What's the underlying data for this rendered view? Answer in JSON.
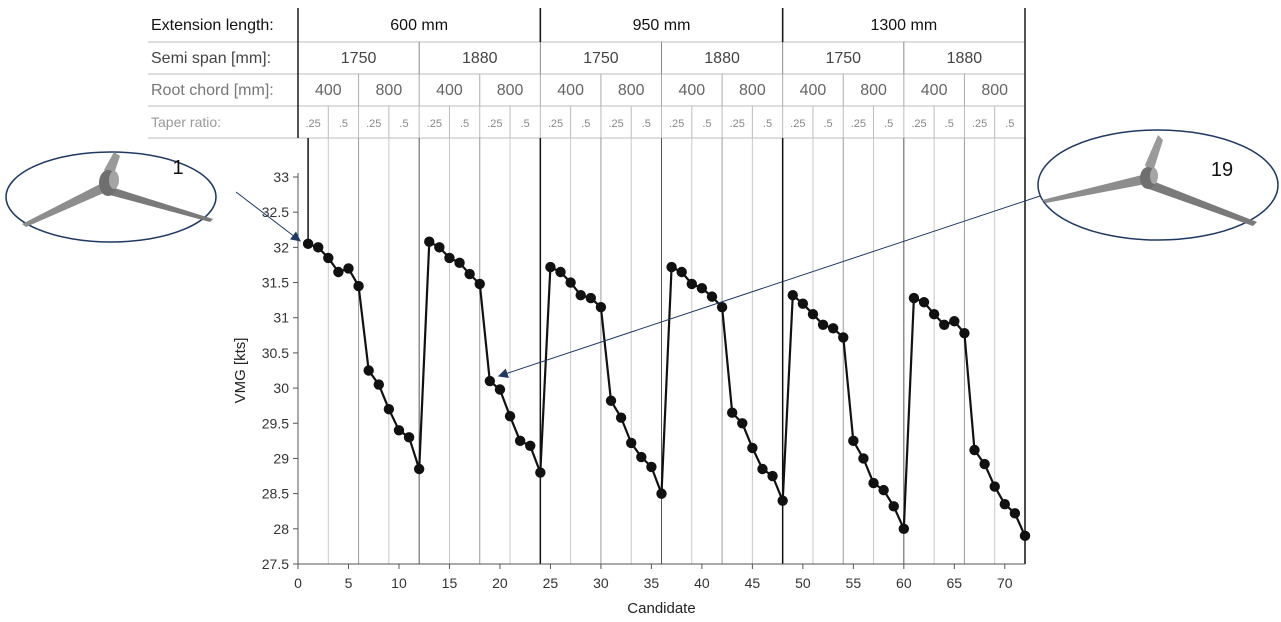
{
  "chart_data": {
    "type": "line",
    "xlabel": "Candidate",
    "ylabel": "VMG [kts]",
    "xlim": [
      0,
      72
    ],
    "ylim": [
      27.5,
      33
    ],
    "x_ticks": [
      0,
      5,
      10,
      15,
      20,
      25,
      30,
      35,
      40,
      45,
      50,
      55,
      60,
      65,
      70
    ],
    "y_ticks": [
      27.5,
      28,
      28.5,
      29,
      29.5,
      30,
      30.5,
      31,
      31.5,
      32,
      32.5,
      33
    ],
    "x_tick_labels": [
      "0",
      "5",
      "10",
      "15",
      "20",
      "25",
      "30",
      "35",
      "40",
      "45",
      "50",
      "55",
      "60",
      "65",
      "70"
    ],
    "y_tick_labels": [
      "27.5",
      "28",
      "28.5",
      "29",
      "29.5",
      "30",
      "30.5",
      "31",
      "31.5",
      "32",
      "32.5",
      "33"
    ],
    "series": [
      {
        "x": [
          1,
          2,
          3,
          4,
          5,
          6,
          7,
          8,
          9,
          10,
          11,
          12,
          13,
          14,
          15,
          16,
          17,
          18,
          19,
          20,
          21,
          22,
          23,
          24,
          25,
          26,
          27,
          28,
          29,
          30,
          31,
          32,
          33,
          34,
          35,
          36,
          37,
          38,
          39,
          40,
          41,
          42,
          43,
          44,
          45,
          46,
          47,
          48,
          49,
          50,
          51,
          52,
          53,
          54,
          55,
          56,
          57,
          58,
          59,
          60,
          61,
          62,
          63,
          64,
          65,
          66,
          67,
          68,
          69,
          70,
          71,
          72
        ],
        "values": [
          32.05,
          32.0,
          31.85,
          31.65,
          31.7,
          31.45,
          30.25,
          30.05,
          29.7,
          29.4,
          29.3,
          28.85,
          32.08,
          32.0,
          31.85,
          31.78,
          31.62,
          31.48,
          30.1,
          29.98,
          29.6,
          29.25,
          29.18,
          28.8,
          31.72,
          31.65,
          31.5,
          31.32,
          31.28,
          31.15,
          29.82,
          29.58,
          29.22,
          29.02,
          28.88,
          28.5,
          31.72,
          31.65,
          31.48,
          31.42,
          31.3,
          31.15,
          29.65,
          29.5,
          29.15,
          28.85,
          28.75,
          28.4,
          31.32,
          31.2,
          31.05,
          30.9,
          30.85,
          30.72,
          29.25,
          29.0,
          28.65,
          28.55,
          28.32,
          28.0,
          31.28,
          31.22,
          31.05,
          30.9,
          30.95,
          30.78,
          29.12,
          28.92,
          28.6,
          28.35,
          28.22,
          27.9
        ]
      }
    ],
    "header": {
      "rows": [
        {
          "label": "Extension length:",
          "groups": [
            "600 mm",
            "950 mm",
            "1300 mm"
          ]
        },
        {
          "label": "Semi span [mm]:",
          "groups": [
            "1750",
            "1880",
            "1750",
            "1880",
            "1750",
            "1880"
          ]
        },
        {
          "label": "Root chord [mm]:",
          "groups": [
            "400",
            "800",
            "400",
            "800",
            "400",
            "800",
            "400",
            "800",
            "400",
            "800",
            "400",
            "800"
          ]
        },
        {
          "label": "Taper ratio:",
          "groups": [
            ".25",
            ".5",
            ".25",
            ".5",
            ".25",
            ".5",
            ".25",
            ".5",
            ".25",
            ".5",
            ".25",
            ".5",
            ".25",
            ".5",
            ".25",
            ".5",
            ".25",
            ".5",
            ".25",
            ".5",
            ".25",
            ".5",
            ".25",
            ".5"
          ]
        }
      ]
    },
    "annotations": [
      {
        "text": "1",
        "candidate": 1
      },
      {
        "text": "19",
        "candidate": 19
      }
    ]
  }
}
